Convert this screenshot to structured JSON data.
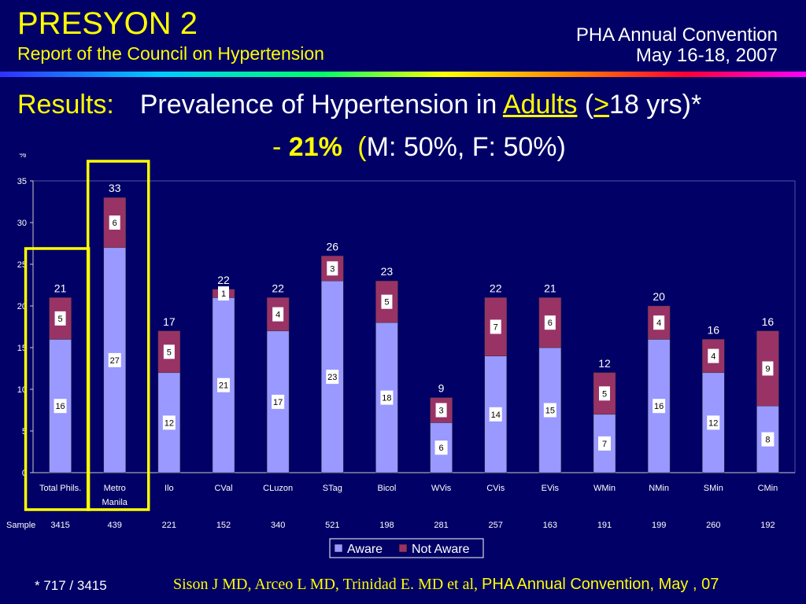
{
  "header": {
    "title": "PRESYON 2",
    "subtitle": "Report of the Council on Hypertension",
    "event_line1": "PHA Annual Convention",
    "event_line2": "May 16-18, 2007"
  },
  "headline": {
    "label": "Results:",
    "text_pre": "Prevalence of Hypertension in ",
    "adults": "Adults",
    "paren_open": " (",
    "gte": ">",
    "text_post": "18 yrs)*",
    "dash": "-",
    "pct": "21%",
    "paren_text_open": "(",
    "paren_text": "M: 50%, F: 50%)"
  },
  "footer": {
    "footnote": "* 717 / 3415",
    "authors": "Sison J MD, Arceo L MD, Trinidad E. MD et al,",
    "conference": "PHA Annual Convention, May , 07"
  },
  "colors": {
    "aware": "#9999FF",
    "not_aware": "#993366",
    "highlight": "#FFFF00",
    "plot_bg": "#000066"
  },
  "chart_data": {
    "type": "bar",
    "stacked": true,
    "ylabel": "%",
    "ylim": [
      0,
      35
    ],
    "yticks": [
      0,
      5,
      10,
      15,
      20,
      25,
      30,
      35
    ],
    "categories": [
      "Total Phils.",
      "Metro Manila",
      "Ilo",
      "CVal",
      "CLuzon",
      "STag",
      "Bicol",
      "WVis",
      "CVis",
      "EVis",
      "WMin",
      "NMin",
      "SMin",
      "CMin"
    ],
    "category_lines": [
      [
        "Total Phils."
      ],
      [
        "Metro",
        "Manila"
      ],
      [
        "Ilo"
      ],
      [
        "CVal"
      ],
      [
        "CLuzon"
      ],
      [
        "STag"
      ],
      [
        "Bicol"
      ],
      [
        "WVis"
      ],
      [
        "CVis"
      ],
      [
        "EVis"
      ],
      [
        "WMin"
      ],
      [
        "NMin"
      ],
      [
        "SMin"
      ],
      [
        "CMin"
      ]
    ],
    "series": [
      {
        "name": "Aware",
        "values": [
          16,
          27,
          12,
          21,
          17,
          23,
          18,
          6,
          14,
          15,
          7,
          16,
          12,
          8
        ]
      },
      {
        "name": "Not Aware",
        "values": [
          5,
          6,
          5,
          1,
          4,
          3,
          5,
          3,
          7,
          6,
          5,
          4,
          4,
          9
        ]
      }
    ],
    "totals": [
      21,
      33,
      17,
      22,
      22,
      26,
      23,
      9,
      22,
      21,
      12,
      20,
      16,
      16
    ],
    "sample_label": "Sample",
    "sample": [
      3415,
      439,
      221,
      152,
      340,
      521,
      198,
      281,
      257,
      163,
      191,
      199,
      260,
      192
    ],
    "legend": {
      "position": "bottom-center"
    },
    "highlighted_categories": [
      "Total Phils.",
      "Metro Manila"
    ]
  }
}
